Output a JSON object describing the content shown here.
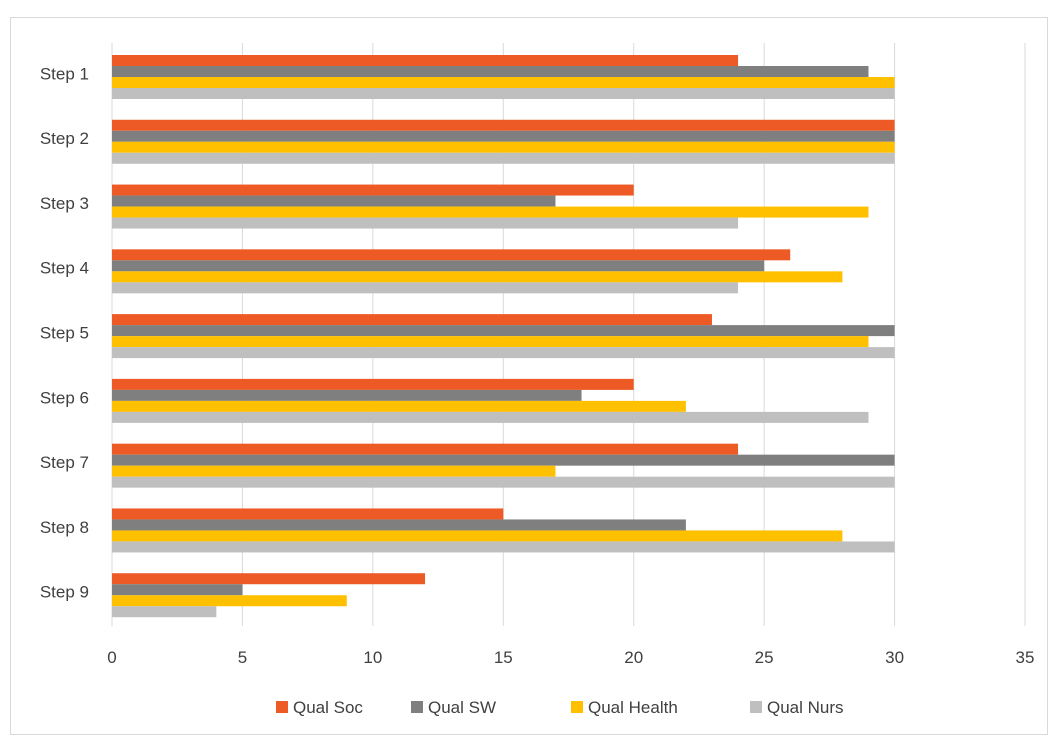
{
  "chart_data": {
    "type": "bar",
    "orientation": "horizontal",
    "categories": [
      "Step 1",
      "Step 2",
      "Step 3",
      "Step 4",
      "Step 5",
      "Step 6",
      "Step 7",
      "Step 8",
      "Step 9"
    ],
    "series": [
      {
        "name": "Qual Soc",
        "color": "#ed5a25",
        "values": [
          24,
          30,
          20,
          26,
          23,
          20,
          24,
          15,
          12
        ]
      },
      {
        "name": "Qual SW",
        "color": "#7f7f7f",
        "values": [
          29,
          30,
          17,
          25,
          30,
          18,
          30,
          22,
          5
        ]
      },
      {
        "name": "Qual Health",
        "color": "#ffc000",
        "values": [
          30,
          30,
          29,
          28,
          29,
          22,
          17,
          28,
          9
        ]
      },
      {
        "name": "Qual Nurs",
        "color": "#bfbfbf",
        "values": [
          30,
          30,
          24,
          24,
          30,
          29,
          30,
          30,
          4
        ]
      }
    ],
    "xlim": [
      0,
      35
    ],
    "xticks": [
      0,
      5,
      10,
      15,
      20,
      25,
      30,
      35
    ],
    "grid": "vertical",
    "legend": "bottom"
  }
}
